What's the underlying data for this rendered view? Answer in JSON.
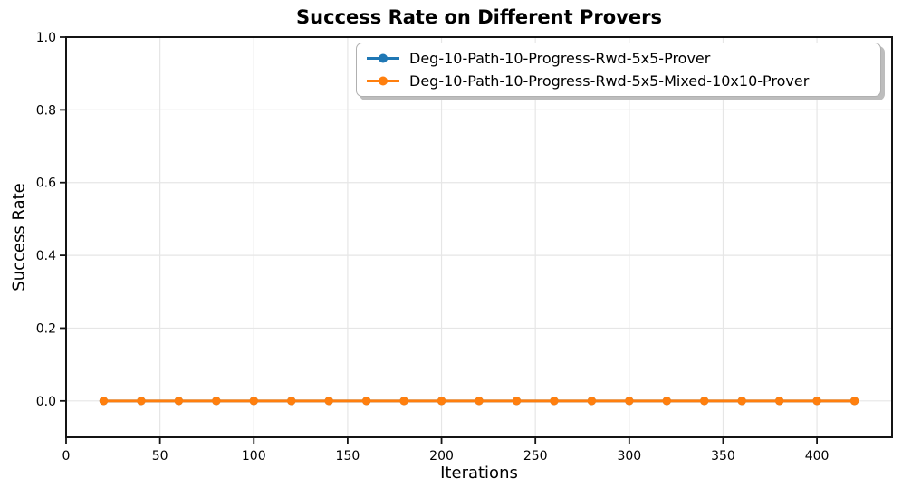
{
  "chart_data": {
    "type": "line",
    "title": "Success Rate on Different Provers",
    "xlabel": "Iterations",
    "ylabel": "Success Rate",
    "x": [
      20,
      40,
      60,
      80,
      100,
      120,
      140,
      160,
      180,
      200,
      220,
      240,
      260,
      280,
      300,
      320,
      340,
      360,
      380,
      400,
      420
    ],
    "series": [
      {
        "name": "Deg-10-Path-10-Progress-Rwd-5x5-Prover",
        "color": "#1f77b4",
        "values": [
          0,
          0,
          0,
          0,
          0,
          0,
          0,
          0,
          0,
          0,
          0,
          0,
          0,
          0,
          0,
          0,
          0,
          0,
          0,
          0,
          0
        ]
      },
      {
        "name": "Deg-10-Path-10-Progress-Rwd-5x5-Mixed-10x10-Prover",
        "color": "#ff7f0e",
        "values": [
          0,
          0,
          0,
          0,
          0,
          0,
          0,
          0,
          0,
          0,
          0,
          0,
          0,
          0,
          0,
          0,
          0,
          0,
          0,
          0,
          0
        ]
      }
    ],
    "xlim": [
      0,
      440
    ],
    "ylim": [
      -0.1,
      1.0
    ],
    "xticks": [
      "0",
      "50",
      "100",
      "150",
      "200",
      "250",
      "300",
      "350",
      "400"
    ],
    "yticks": [
      "0.0",
      "0.2",
      "0.4",
      "0.6",
      "0.8",
      "1.0"
    ],
    "grid": true,
    "legend_position": "upper center",
    "marker": "circle"
  }
}
